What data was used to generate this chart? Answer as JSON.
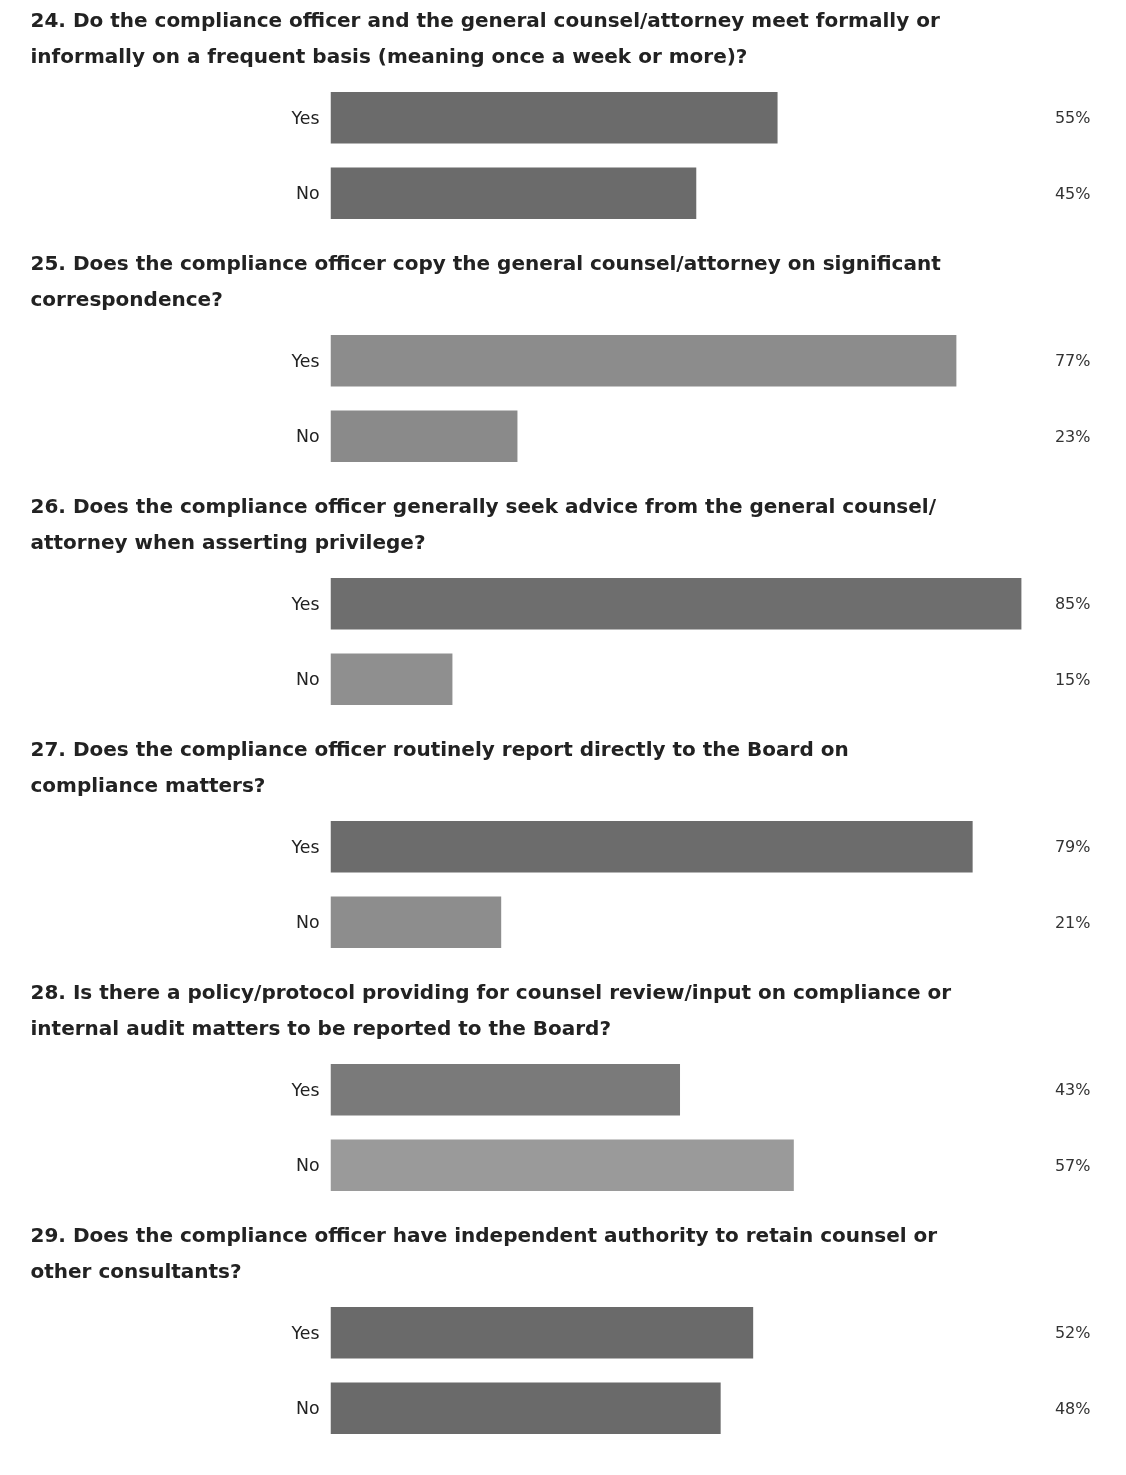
{
  "chart_data": [
    {
      "type": "bar",
      "orientation": "horizontal",
      "title": "24. Do the compliance officer and the general counsel/attorney meet formally or informally on a frequent basis (meaning once a week or more)?",
      "categories": [
        "Yes",
        "No"
      ],
      "values": [
        55,
        45
      ],
      "value_labels": [
        "55%",
        "45%"
      ],
      "colors": [
        "#6b6b6b",
        "#6b6b6b"
      ],
      "tick_labels": "y"
    },
    {
      "type": "bar",
      "orientation": "horizontal",
      "title": "25. Does the compliance officer copy the general counsel/attorney on significant correspondence?",
      "categories": [
        "Yes",
        "No"
      ],
      "values": [
        77,
        23
      ],
      "value_labels": [
        "77%",
        "23%"
      ],
      "colors": [
        "#8c8c8c",
        "#8a8a8a"
      ],
      "tick_labels": "y"
    },
    {
      "type": "bar",
      "orientation": "horizontal",
      "title": "26. Does the compliance officer generally seek advice from the general counsel/ attorney when asserting privilege?",
      "categories": [
        "Yes",
        "No"
      ],
      "values": [
        85,
        15
      ],
      "value_labels": [
        "85%",
        "15%"
      ],
      "colors": [
        "#6e6e6e",
        "#8f8f8f"
      ],
      "tick_labels": "y"
    },
    {
      "type": "bar",
      "orientation": "horizontal",
      "title": "27. Does the compliance officer routinely report directly to the Board on compliance matters?",
      "categories": [
        "Yes",
        "No"
      ],
      "values": [
        79,
        21
      ],
      "value_labels": [
        "79%",
        "21%"
      ],
      "colors": [
        "#6c6c6c",
        "#8d8d8d"
      ],
      "tick_labels": "y"
    },
    {
      "type": "bar",
      "orientation": "horizontal",
      "title": "28. Is there a policy/protocol providing for counsel review/input on compliance or internal audit matters to be reported to the Board?",
      "categories": [
        "Yes",
        "No"
      ],
      "values": [
        43,
        57
      ],
      "value_labels": [
        "43%",
        "57%"
      ],
      "colors": [
        "#7a7a7a",
        "#9a9a9a"
      ],
      "tick_labels": "y"
    },
    {
      "type": "bar",
      "orientation": "horizontal",
      "title": "29. Does the compliance officer have independent authority to retain counsel or other consultants?",
      "categories": [
        "Yes",
        "No"
      ],
      "values": [
        52,
        48
      ],
      "value_labels": [
        "52%",
        "48%"
      ],
      "colors": [
        "#6a6a6a",
        "#6a6a6a"
      ],
      "tick_labels": "y"
    }
  ]
}
